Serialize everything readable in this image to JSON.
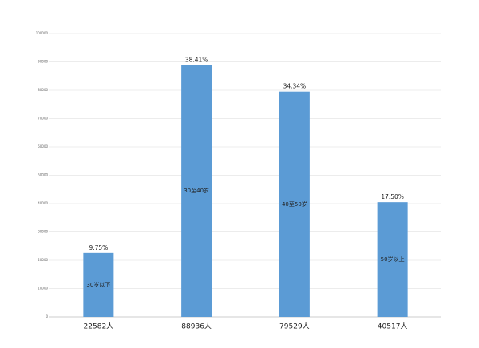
{
  "chart_data": {
    "type": "bar",
    "categories": [
      "22582人",
      "88936人",
      "79529人",
      "40517人"
    ],
    "values": [
      22582,
      88936,
      79529,
      40517
    ],
    "percent_labels": [
      "9.75%",
      "38.41%",
      "34.34%",
      "17.50%"
    ],
    "bar_labels": [
      "30岁以下",
      "30至40岁",
      "40至50岁",
      "50岁以上"
    ],
    "color": "#5b9bd5",
    "ylim": [
      0,
      100000
    ],
    "yticks": [
      0,
      10000,
      20000,
      30000,
      40000,
      50000,
      60000,
      70000,
      80000,
      90000,
      100000
    ],
    "grid": true
  }
}
